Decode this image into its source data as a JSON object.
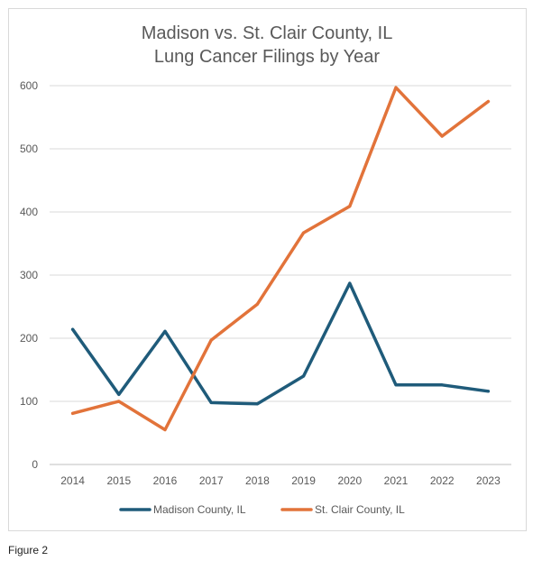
{
  "chart_data": {
    "type": "line",
    "title_lines": [
      "Madison vs. St. Clair County, IL",
      "Lung Cancer Filings by Year"
    ],
    "categories": [
      "2014",
      "2015",
      "2016",
      "2017",
      "2018",
      "2019",
      "2020",
      "2021",
      "2022",
      "2023"
    ],
    "y_ticks": [
      "0",
      "100",
      "200",
      "300",
      "400",
      "500",
      "600"
    ],
    "ylim": [
      0,
      600
    ],
    "grid": "horizontal",
    "legend_position": "bottom",
    "series": [
      {
        "name": "Madison County, IL",
        "color": "#1f5b7a",
        "values": [
          214,
          111,
          211,
          98,
          96,
          140,
          287,
          126,
          126,
          116
        ]
      },
      {
        "name": "St. Clair County, IL",
        "color": "#e2733a",
        "values": [
          81,
          100,
          55,
          197,
          254,
          367,
          409,
          597,
          520,
          575
        ]
      }
    ]
  },
  "caption": "Figure 2"
}
